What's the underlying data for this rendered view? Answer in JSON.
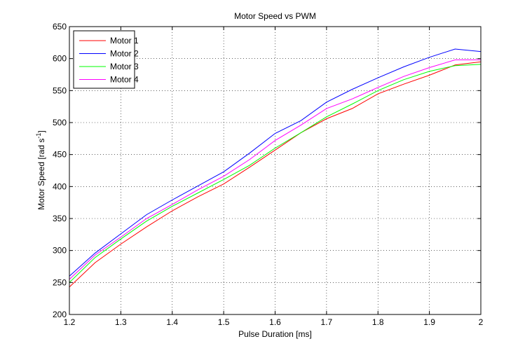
{
  "chart_data": {
    "type": "line",
    "title": "Motor Speed vs PWM",
    "xlabel": "Pulse Duration [ms]",
    "ylabel_main": "Motor Speed [rad s",
    "ylabel_sup": "-1",
    "ylabel_close": "]",
    "xlim": [
      1.2,
      2.0
    ],
    "ylim": [
      200,
      650
    ],
    "xticks": [
      1.2,
      1.3,
      1.4,
      1.5,
      1.6,
      1.7,
      1.8,
      1.9,
      2.0
    ],
    "xtick_labels": [
      "1.2",
      "1.3",
      "1.4",
      "1.5",
      "1.6",
      "1.7",
      "1.8",
      "1.9",
      "2"
    ],
    "yticks": [
      200,
      250,
      300,
      350,
      400,
      450,
      500,
      550,
      600,
      650
    ],
    "ytick_labels": [
      "200",
      "250",
      "300",
      "350",
      "400",
      "450",
      "500",
      "550",
      "600",
      "650"
    ],
    "grid": true,
    "legend_position": "top-left",
    "x": [
      1.2,
      1.25,
      1.3,
      1.35,
      1.4,
      1.45,
      1.5,
      1.55,
      1.6,
      1.65,
      1.7,
      1.75,
      1.8,
      1.85,
      1.9,
      1.95,
      2.0
    ],
    "series": [
      {
        "name": "Motor 1",
        "color": "#ff0000",
        "values": [
          243,
          281,
          310,
          337,
          362,
          384,
          404,
          430,
          457,
          484,
          506,
          522,
          545,
          560,
          574,
          590,
          595
        ]
      },
      {
        "name": "Motor 2",
        "color": "#0000ff",
        "values": [
          260,
          296,
          326,
          356,
          379,
          401,
          423,
          452,
          483,
          503,
          532,
          552,
          570,
          587,
          602,
          615,
          611
        ]
      },
      {
        "name": "Motor 3",
        "color": "#00ff00",
        "values": [
          250,
          289,
          318,
          346,
          369,
          390,
          411,
          433,
          460,
          484,
          509,
          529,
          550,
          567,
          580,
          589,
          591
        ]
      },
      {
        "name": "Motor 4",
        "color": "#ff00ff",
        "values": [
          255,
          293,
          321,
          350,
          372,
          395,
          416,
          442,
          472,
          496,
          522,
          537,
          555,
          572,
          586,
          598,
          598
        ]
      }
    ]
  }
}
